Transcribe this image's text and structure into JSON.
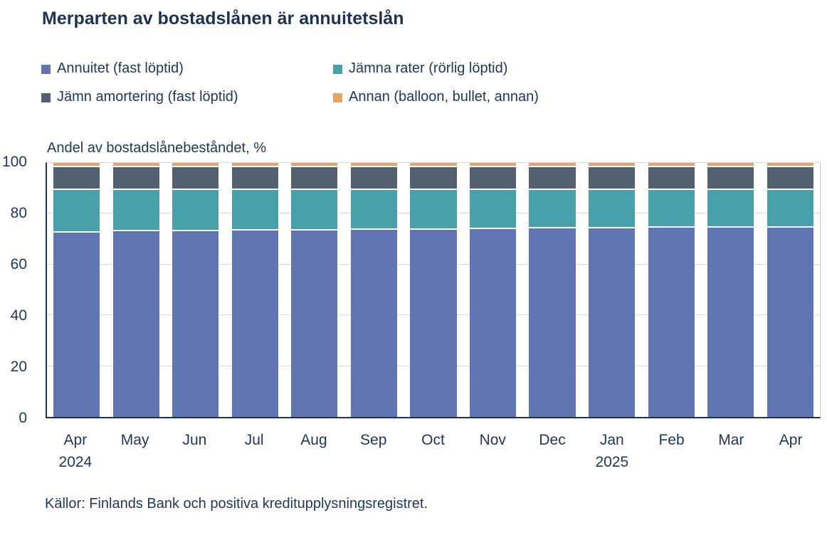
{
  "title": "Merparten av bostadslånen är annuitetslån",
  "axis_title": "Andel av bostadslånebeståndet,  %",
  "source": "Källor: Finlands Bank och positiva kreditupplysningsregistret.",
  "colors": {
    "text_navy": "#1e3254",
    "axis_line": "#1e3254",
    "gridline": "#d9d9d9",
    "plot_right_border": "#c9c9c9",
    "annuitet": "#6175b2",
    "jamna_rater": "#48a1aa",
    "jamn_amortering": "#52606f",
    "annan": "#e2a566"
  },
  "chart_data": {
    "type": "bar",
    "stacked": true,
    "title": "Merparten av bostadslånen är annuitetslån",
    "ylabel": "Andel av bostadslånebeståndet, %",
    "ylim": [
      0,
      100
    ],
    "yticks": [
      0,
      20,
      40,
      60,
      80,
      100
    ],
    "grid": true,
    "legend_position": "top",
    "categories": [
      "Apr",
      "May",
      "Jun",
      "Jul",
      "Aug",
      "Sep",
      "Oct",
      "Nov",
      "Dec",
      "Jan",
      "Feb",
      "Mar",
      "Apr"
    ],
    "category_years": [
      "2024",
      "",
      "",
      "",
      "",
      "",
      "",
      "",
      "",
      "2025",
      "",
      "",
      ""
    ],
    "series": [
      {
        "name": "Annuitet (fast löptid)",
        "color": "#6175b2",
        "values": [
          72.6,
          73.0,
          73.2,
          73.4,
          73.5,
          73.7,
          73.8,
          74.0,
          74.1,
          74.3,
          74.4,
          74.5,
          74.6
        ]
      },
      {
        "name": "Jämna rater (rörlig löptid)",
        "color": "#48a1aa",
        "values": [
          16.8,
          16.4,
          16.2,
          16.0,
          15.9,
          15.7,
          15.6,
          15.4,
          15.3,
          15.1,
          15.0,
          14.9,
          14.8
        ]
      },
      {
        "name": "Jämn amortering (fast löptid)",
        "color": "#52606f",
        "values": [
          9.0,
          9.0,
          9.0,
          9.0,
          9.0,
          9.0,
          9.0,
          9.0,
          9.0,
          9.0,
          9.0,
          9.0,
          9.0
        ]
      },
      {
        "name": "Annan (balloon, bullet, annan)",
        "color": "#e2a566",
        "values": [
          1.6,
          1.6,
          1.6,
          1.6,
          1.6,
          1.6,
          1.6,
          1.6,
          1.6,
          1.6,
          1.6,
          1.6,
          1.6
        ]
      }
    ]
  }
}
